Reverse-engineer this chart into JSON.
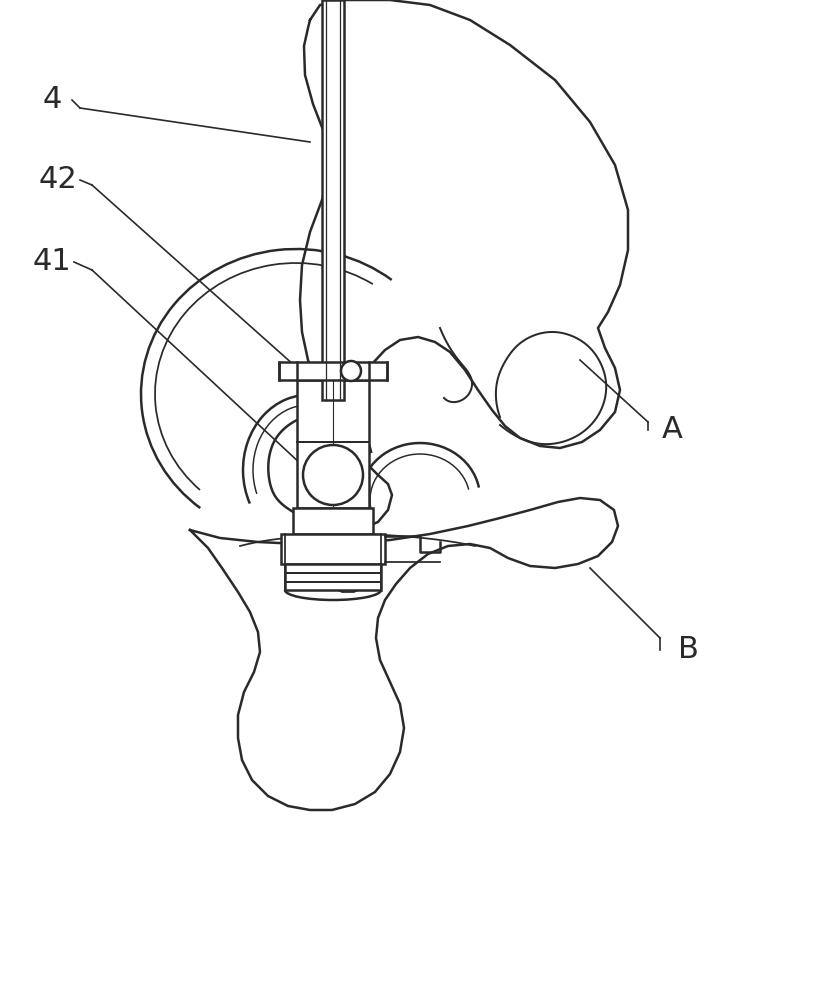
{
  "background_color": "#ffffff",
  "line_color": "#2a2a2a",
  "line_width": 1.8,
  "fig_width": 8.24,
  "fig_height": 10.0,
  "dpi": 100
}
